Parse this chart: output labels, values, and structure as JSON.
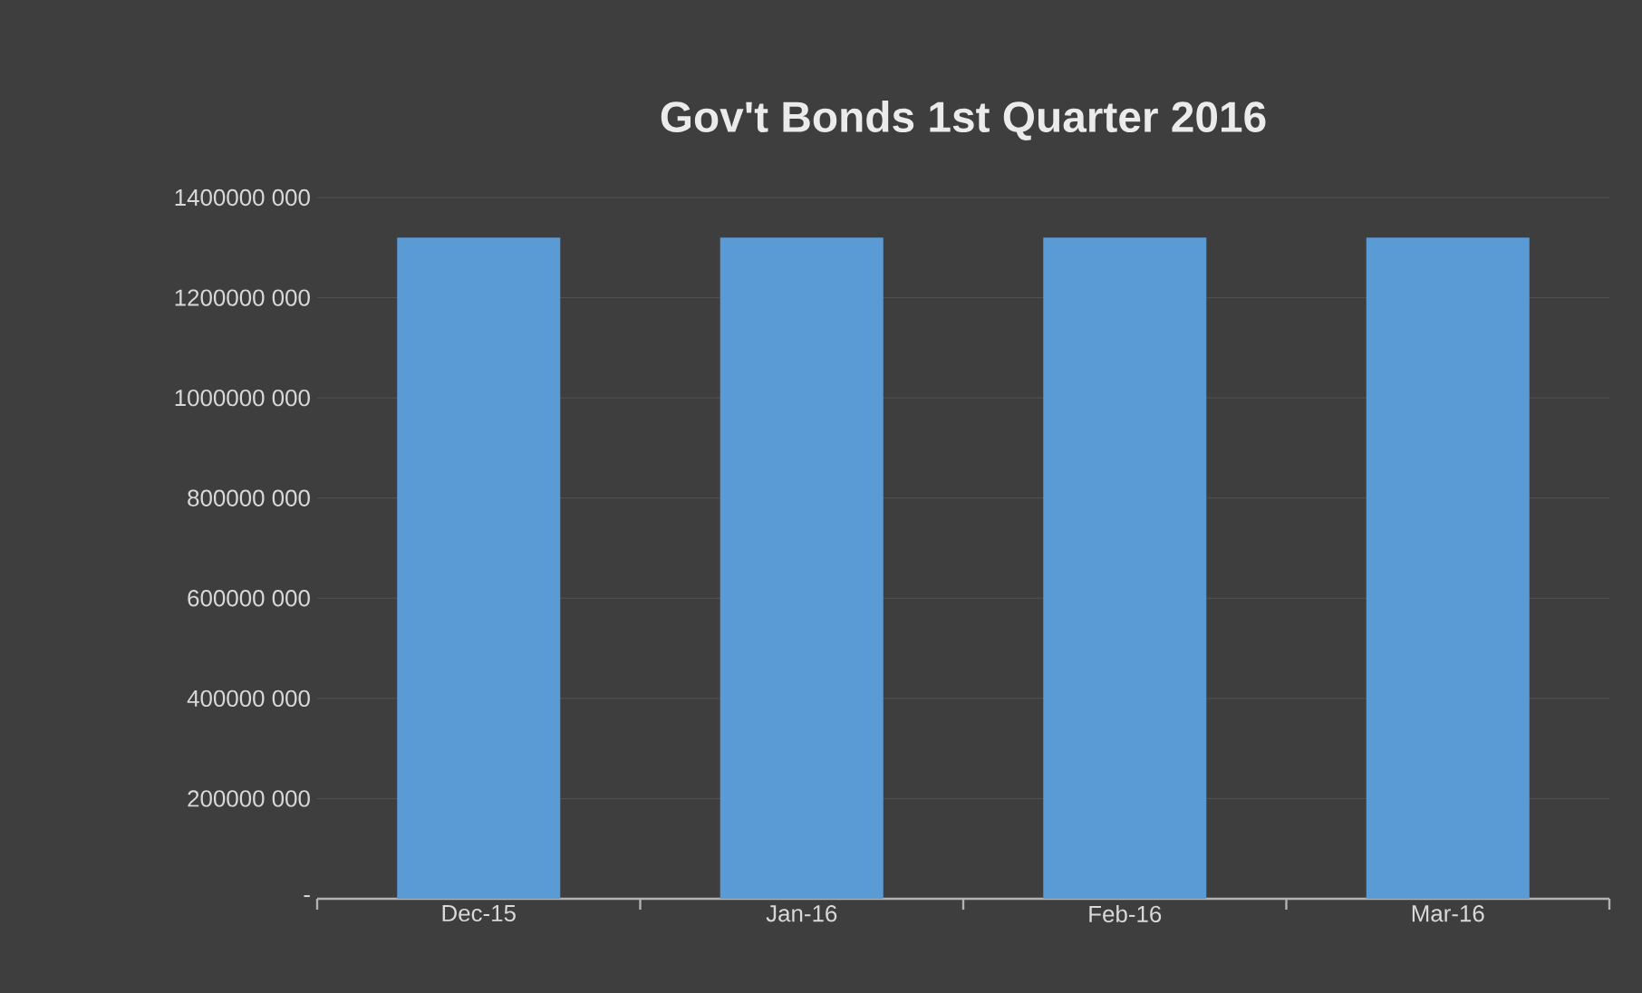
{
  "chart_data": {
    "type": "bar",
    "title": "Gov't Bonds 1st Quarter 2016",
    "categories": [
      "Dec-15",
      "Jan-16",
      "Feb-16",
      "Mar-16"
    ],
    "values": [
      1320000000,
      1320000000,
      1320000000,
      1320000000
    ],
    "color": "#5b9bd5",
    "ylim": [
      0,
      1400000000
    ],
    "yticks": [
      {
        "value": 0,
        "label": "-"
      },
      {
        "value": 200000000,
        "label": "200000 000"
      },
      {
        "value": 400000000,
        "label": "400000 000"
      },
      {
        "value": 600000000,
        "label": "600000 000"
      },
      {
        "value": 800000000,
        "label": "800000 000"
      },
      {
        "value": 1000000000,
        "label": "1000000 000"
      },
      {
        "value": 1200000000,
        "label": "1200000 000"
      },
      {
        "value": 1400000000,
        "label": "1400000 000"
      }
    ],
    "grid": "y"
  }
}
